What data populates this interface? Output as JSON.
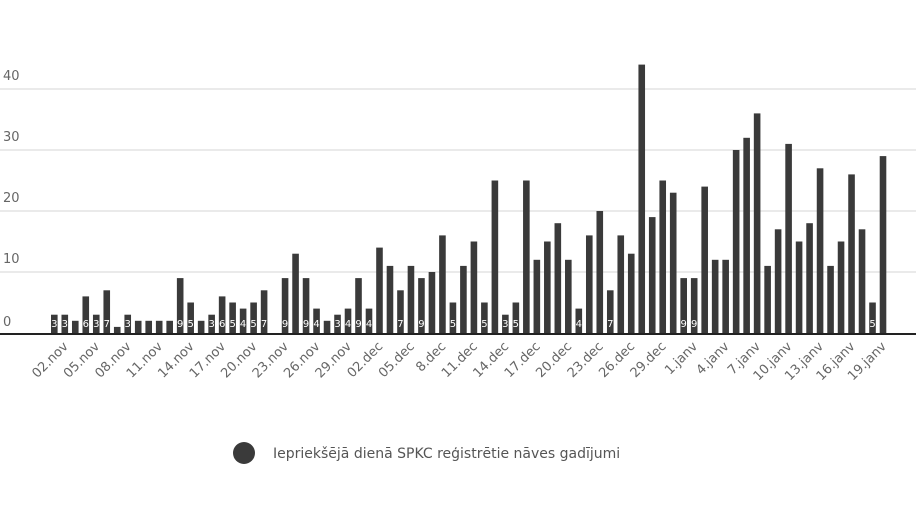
{
  "chart_data": {
    "type": "bar",
    "ylim": [
      0,
      45
    ],
    "yticks": [
      0,
      10,
      20,
      30,
      40
    ],
    "grid": true,
    "legend_position": "bottom",
    "colors": {
      "bar": "#3a3a3a",
      "grid": "#d4d4d4",
      "axis": "#222222"
    },
    "series": [
      {
        "name": "Iepriekšējā dienā SPKC reģistrētie nāves gadījumi",
        "values": [
          3,
          3,
          2,
          6,
          3,
          7,
          1,
          3,
          2,
          2,
          2,
          2,
          9,
          5,
          2,
          3,
          6,
          5,
          4,
          5,
          7,
          0,
          9,
          13,
          9,
          4,
          2,
          3,
          4,
          9,
          4,
          14,
          11,
          7,
          11,
          9,
          10,
          16,
          5,
          11,
          15,
          5,
          25,
          3,
          5,
          25,
          12,
          15,
          18,
          12,
          4,
          16,
          20,
          7,
          16,
          13,
          44,
          19,
          25,
          23,
          9,
          9,
          24,
          12,
          12,
          30,
          32,
          36,
          11,
          17,
          31,
          15,
          18,
          27,
          11,
          15,
          26,
          17,
          5,
          29
        ]
      }
    ],
    "data_labels": [
      {
        "index": 0,
        "text": "3"
      },
      {
        "index": 1,
        "text": "3"
      },
      {
        "index": 3,
        "text": "6"
      },
      {
        "index": 4,
        "text": "3"
      },
      {
        "index": 5,
        "text": "7"
      },
      {
        "index": 7,
        "text": "3"
      },
      {
        "index": 12,
        "text": "9"
      },
      {
        "index": 13,
        "text": "5"
      },
      {
        "index": 15,
        "text": "3"
      },
      {
        "index": 16,
        "text": "6"
      },
      {
        "index": 17,
        "text": "5"
      },
      {
        "index": 18,
        "text": "4"
      },
      {
        "index": 19,
        "text": "5"
      },
      {
        "index": 20,
        "text": "7"
      },
      {
        "index": 22,
        "text": "9"
      },
      {
        "index": 24,
        "text": "9"
      },
      {
        "index": 25,
        "text": "4"
      },
      {
        "index": 27,
        "text": "3"
      },
      {
        "index": 28,
        "text": "4"
      },
      {
        "index": 29,
        "text": "9"
      },
      {
        "index": 30,
        "text": "4"
      },
      {
        "index": 33,
        "text": "7"
      },
      {
        "index": 35,
        "text": "9"
      },
      {
        "index": 38,
        "text": "5"
      },
      {
        "index": 41,
        "text": "5"
      },
      {
        "index": 43,
        "text": "3"
      },
      {
        "index": 44,
        "text": "5"
      },
      {
        "index": 50,
        "text": "4"
      },
      {
        "index": 53,
        "text": "7"
      },
      {
        "index": 60,
        "text": "9"
      },
      {
        "index": 61,
        "text": "9"
      },
      {
        "index": 78,
        "text": "5"
      }
    ],
    "x_tick_labels": [
      {
        "index": 1,
        "text": "02.nov"
      },
      {
        "index": 4,
        "text": "05.nov"
      },
      {
        "index": 7,
        "text": "08.nov"
      },
      {
        "index": 10,
        "text": "11.nov"
      },
      {
        "index": 13,
        "text": "14.nov"
      },
      {
        "index": 16,
        "text": "17.nov"
      },
      {
        "index": 19,
        "text": "20.nov"
      },
      {
        "index": 22,
        "text": "23.nov"
      },
      {
        "index": 25,
        "text": "26.nov"
      },
      {
        "index": 28,
        "text": "29.nov"
      },
      {
        "index": 31,
        "text": "02.dec"
      },
      {
        "index": 34,
        "text": "05.dec"
      },
      {
        "index": 37,
        "text": "8.dec"
      },
      {
        "index": 40,
        "text": "11.dec"
      },
      {
        "index": 43,
        "text": "14.dec"
      },
      {
        "index": 46,
        "text": "17.dec"
      },
      {
        "index": 49,
        "text": "20.dec"
      },
      {
        "index": 52,
        "text": "23.dec"
      },
      {
        "index": 55,
        "text": "26.dec"
      },
      {
        "index": 58,
        "text": "29.dec"
      },
      {
        "index": 61,
        "text": "1.janv"
      },
      {
        "index": 64,
        "text": "4.janv"
      },
      {
        "index": 67,
        "text": "7.janv"
      },
      {
        "index": 70,
        "text": "10.janv"
      },
      {
        "index": 73,
        "text": "13.janv"
      },
      {
        "index": 76,
        "text": "16.janv"
      },
      {
        "index": 79,
        "text": "19.janv"
      }
    ]
  }
}
